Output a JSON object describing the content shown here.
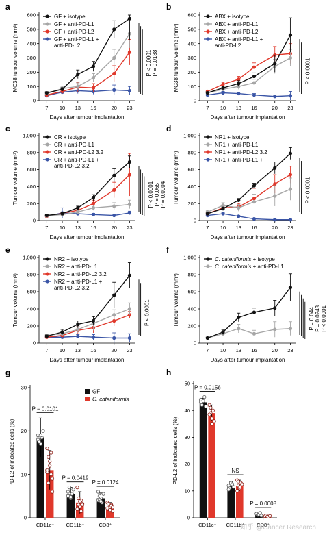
{
  "chart_data": [
    {
      "id": "a",
      "type": "line",
      "panel_label": "a",
      "xlabel": "Days after tumour implantation",
      "ylabel": "MC38 tumour volume (mm³)",
      "x": [
        7,
        10,
        13,
        16,
        20,
        23
      ],
      "xlim": [
        5.5,
        24
      ],
      "ylim": [
        0,
        600
      ],
      "yticks": [
        0,
        100,
        200,
        300,
        400,
        500,
        600
      ],
      "grid": false,
      "legend_position": "top-left",
      "legend_extra": "anti-PD-L2",
      "series": [
        {
          "name": "GF + isotype",
          "color": "#111111",
          "values": [
            55,
            80,
            185,
            240,
            500,
            575
          ],
          "err": [
            8,
            12,
            30,
            35,
            60,
            150
          ]
        },
        {
          "name": "GF + anti-PD-L1",
          "color": "#a6a6a6",
          "values": [
            50,
            85,
            100,
            160,
            300,
            470
          ],
          "err": [
            8,
            15,
            25,
            30,
            60,
            100
          ]
        },
        {
          "name": "GF + anti-PD-L2",
          "color": "#e0382b",
          "values": [
            40,
            65,
            95,
            90,
            190,
            340
          ],
          "err": [
            8,
            15,
            35,
            30,
            55,
            90
          ]
        },
        {
          "name": "GF + anti-PD-L1 +",
          "color": "#3a55a6",
          "values": [
            35,
            60,
            70,
            65,
            75,
            70
          ],
          "err": [
            8,
            12,
            20,
            20,
            35,
            30
          ]
        }
      ],
      "pvalues": [
        "P < 0.0001",
        "P = 0.0188"
      ]
    },
    {
      "id": "b",
      "type": "line",
      "panel_label": "b",
      "xlabel": "Days after tumour implantation",
      "ylabel": "MC38 tumour volume (mm³)",
      "x": [
        7,
        10,
        13,
        16,
        20,
        23
      ],
      "xlim": [
        5.5,
        24
      ],
      "ylim": [
        0,
        600
      ],
      "yticks": [
        0,
        100,
        200,
        300,
        400,
        500,
        600
      ],
      "grid": false,
      "legend_position": "top-left",
      "legend_extra": "anti-PD-L2",
      "series": [
        {
          "name": "ABX + isotype",
          "color": "#111111",
          "values": [
            55,
            90,
            120,
            170,
            260,
            460
          ],
          "err": [
            8,
            12,
            20,
            25,
            60,
            120
          ]
        },
        {
          "name": "ABX + anti-PD-L1",
          "color": "#a6a6a6",
          "values": [
            55,
            80,
            100,
            125,
            240,
            300
          ],
          "err": [
            8,
            12,
            20,
            25,
            50,
            60
          ]
        },
        {
          "name": "ABX + anti-PD-L2",
          "color": "#e0382b",
          "values": [
            65,
            115,
            150,
            235,
            320,
            330
          ],
          "err": [
            8,
            15,
            20,
            30,
            60,
            70
          ]
        },
        {
          "name": "ABX + anti-PD-L1 +",
          "color": "#3a55a6",
          "values": [
            40,
            55,
            50,
            40,
            30,
            35
          ],
          "err": [
            8,
            10,
            10,
            10,
            10,
            30
          ]
        }
      ],
      "pvalues": [
        "P < 0.0001"
      ]
    },
    {
      "id": "c",
      "type": "line",
      "panel_label": "c",
      "xlabel": "Days after tumour implantation",
      "ylabel": "Tumour volume (mm³)",
      "x": [
        7,
        10,
        13,
        16,
        20,
        23
      ],
      "xlim": [
        5.5,
        24
      ],
      "ylim": [
        0,
        1000
      ],
      "yticks": [
        0,
        200,
        400,
        600,
        800,
        1000
      ],
      "ytick_labels": [
        "0",
        "200",
        "400",
        "600",
        "800",
        "1,000"
      ],
      "grid": false,
      "legend_position": "top-left",
      "legend_extra": "anti-PD-L2 3.2",
      "series": [
        {
          "name": "CR + isotype",
          "color": "#111111",
          "values": [
            60,
            80,
            150,
            270,
            530,
            690
          ],
          "err": [
            10,
            15,
            20,
            35,
            80,
            70
          ]
        },
        {
          "name": "CR + anti-PD-L1",
          "color": "#a6a6a6",
          "values": [
            55,
            70,
            100,
            150,
            170,
            190
          ],
          "err": [
            10,
            12,
            20,
            30,
            40,
            50
          ]
        },
        {
          "name": "CR + anti-PD-L2 3.2",
          "color": "#e0382b",
          "values": [
            50,
            85,
            120,
            200,
            360,
            540
          ],
          "err": [
            10,
            15,
            20,
            40,
            90,
            250
          ]
        },
        {
          "name": "CR + anti-PD-L1 +",
          "color": "#3a55a6",
          "values": [
            50,
            90,
            80,
            70,
            60,
            90
          ],
          "err": [
            10,
            60,
            20,
            15,
            15,
            20
          ]
        }
      ],
      "pvalues": [
        "P < 0.0001",
        "P = 0.065",
        "P = 0.0004"
      ]
    },
    {
      "id": "d",
      "type": "line",
      "panel_label": "d",
      "xlabel": "Days after tumour implantation",
      "ylabel": "Tumour volume (mm³)",
      "x": [
        7,
        10,
        13,
        16,
        20,
        23
      ],
      "xlim": [
        5.5,
        24
      ],
      "ylim": [
        0,
        1000
      ],
      "yticks": [
        0,
        200,
        400,
        600,
        800,
        1000
      ],
      "ytick_labels": [
        "0",
        "200",
        "400",
        "600",
        "800",
        "1,000"
      ],
      "grid": false,
      "legend_position": "top-left",
      "series": [
        {
          "name": "NR1 + isotype",
          "color": "#111111",
          "values": [
            80,
            140,
            240,
            410,
            620,
            790
          ],
          "err": [
            10,
            20,
            20,
            30,
            70,
            70
          ]
        },
        {
          "name": "NR1 + anti-PD-L1",
          "color": "#a6a6a6",
          "values": [
            100,
            180,
            150,
            220,
            290,
            370
          ],
          "err": [
            15,
            30,
            40,
            90,
            120,
            130
          ]
        },
        {
          "name": "NR1 + anti-PD-L2 3.2",
          "color": "#e0382b",
          "values": [
            80,
            150,
            160,
            260,
            430,
            540
          ],
          "err": [
            15,
            25,
            40,
            120,
            110,
            100
          ]
        },
        {
          "name": "NR1 + anti-PD-L1 +",
          "color": "#3a55a6",
          "values": [
            60,
            80,
            50,
            20,
            10,
            10
          ],
          "err": [
            10,
            15,
            10,
            5,
            5,
            5
          ]
        }
      ],
      "pvalues": [
        "P < 0.0001"
      ]
    },
    {
      "id": "e",
      "type": "line",
      "panel_label": "e",
      "xlabel": "Days after tumour implantation",
      "ylabel": "Tumour volume (mm³)",
      "x": [
        7,
        10,
        13,
        16,
        20,
        23
      ],
      "xlim": [
        5.5,
        24
      ],
      "ylim": [
        0,
        1000
      ],
      "yticks": [
        0,
        200,
        400,
        600,
        800,
        1000
      ],
      "ytick_labels": [
        "0",
        "200",
        "400",
        "600",
        "800",
        "1,000"
      ],
      "grid": false,
      "legend_position": "top-left",
      "legend_extra": "anti-PD-L2 3.2",
      "series": [
        {
          "name": "NR2 + isotype",
          "color": "#111111",
          "values": [
            80,
            130,
            220,
            260,
            560,
            790
          ],
          "err": [
            15,
            30,
            40,
            50,
            150,
            150
          ]
        },
        {
          "name": "NR2 + anti-PD-L1",
          "color": "#a6a6a6",
          "values": [
            90,
            110,
            160,
            230,
            330,
            400
          ],
          "err": [
            15,
            20,
            40,
            80,
            60,
            70
          ]
        },
        {
          "name": "NR2 + anti-PD-L2 3.2",
          "color": "#e0382b",
          "values": [
            70,
            90,
            150,
            180,
            260,
            330
          ],
          "err": [
            15,
            20,
            40,
            60,
            60,
            40
          ]
        },
        {
          "name": "NR2 + anti-PD-L1 +",
          "color": "#3a55a6",
          "values": [
            70,
            70,
            80,
            70,
            60,
            60
          ],
          "err": [
            15,
            20,
            20,
            30,
            60,
            50
          ]
        }
      ],
      "pvalues": [
        "P < 0.0001"
      ]
    },
    {
      "id": "f",
      "type": "line",
      "panel_label": "f",
      "xlabel": "Days after tumour implantation",
      "ylabel": "Tumour volume (mm³)",
      "x": [
        7,
        10,
        13,
        16,
        20,
        23
      ],
      "xlim": [
        5.5,
        24
      ],
      "ylim": [
        0,
        1000
      ],
      "yticks": [
        0,
        200,
        400,
        600,
        800,
        1000
      ],
      "ytick_labels": [
        "0",
        "200",
        "400",
        "600",
        "800",
        "1,000"
      ],
      "grid": false,
      "legend_position": "top-left",
      "series": [
        {
          "name": "C. cateniformis + isotype",
          "color": "#111111",
          "values": [
            60,
            130,
            300,
            360,
            410,
            650
          ],
          "err": [
            10,
            30,
            50,
            50,
            90,
            160
          ]
        },
        {
          "name": "C. cateniformis + anti-PD-L1",
          "color": "#a6a6a6",
          "values": [
            60,
            110,
            170,
            110,
            160,
            170
          ],
          "err": [
            10,
            30,
            50,
            40,
            90,
            80
          ]
        }
      ],
      "pvalues": [
        "P = 0.044",
        "P = 0.0243",
        "P < 0.0001"
      ]
    },
    {
      "id": "g",
      "type": "bar",
      "panel_label": "g",
      "ylabel": "PD-L2 of indicated cells (%)",
      "categories": [
        "CD11c⁺",
        "CD11b⁺",
        "CD8⁺"
      ],
      "ylim": [
        0,
        30
      ],
      "yticks": [
        0,
        10,
        20,
        30
      ],
      "grid": false,
      "legend_position": "top-right",
      "series": [
        {
          "name": "GF",
          "color": "#111111",
          "values": [
            18.5,
            5.5,
            4.5
          ],
          "err": [
            4.5,
            1.5,
            1.2
          ],
          "points": [
            [
              19,
              18,
              17,
              18.5,
              20,
              18,
              17.5,
              19
            ],
            [
              6,
              5,
              4.5,
              5.5,
              6.5,
              5,
              7,
              4.8
            ],
            [
              4,
              5,
              4.5,
              3.5,
              5.5,
              6,
              4.2,
              3.8
            ]
          ]
        },
        {
          "name": "C. cateniformis",
          "color": "#e0382b",
          "values": [
            11,
            3.5,
            2.5
          ],
          "err": [
            4.5,
            2.5,
            1.0
          ],
          "points": [
            [
              16,
              14,
              12,
              10,
              9,
              11,
              8,
              13,
              15,
              6,
              10.5
            ],
            [
              7,
              3,
              2.5,
              4,
              3.2,
              2,
              4.5,
              3.8,
              1.5,
              3
            ],
            [
              3.5,
              2,
              2.5,
              3,
              1.5,
              2.2,
              3.2,
              1.8,
              2.8,
              2.4
            ]
          ]
        }
      ],
      "comparisons": [
        {
          "text": "P = 0.0101",
          "category": 0
        },
        {
          "text": "P = 0.0419",
          "category": 1
        },
        {
          "text": "P = 0.0124",
          "category": 2
        }
      ]
    },
    {
      "id": "h",
      "type": "bar",
      "panel_label": "h",
      "ylabel": "PD-L2 of indicated cells (%)",
      "categories": [
        "CD11c⁺",
        "CD11b⁺",
        "CD8⁺"
      ],
      "ylim": [
        0,
        50
      ],
      "yticks": [
        0,
        10,
        20,
        30,
        40,
        50
      ],
      "grid": false,
      "series": [
        {
          "name": "GF",
          "color": "#111111",
          "values": [
            43,
            12,
            1.2
          ],
          "err": [
            1.5,
            1.5,
            0.5
          ],
          "points": [
            [
              44,
              42,
              43.5,
              45,
              41.5,
              43
            ],
            [
              12,
              11,
              13,
              12.5,
              11.5,
              10.5
            ],
            [
              1.5,
              1.0,
              1.2,
              1.8,
              0.8
            ]
          ]
        },
        {
          "name": "C. cateniformis",
          "color": "#e0382b",
          "values": [
            39,
            12,
            0.6
          ],
          "err": [
            3,
            2,
            0.3
          ],
          "points": [
            [
              42,
              39,
              37,
              40,
              36,
              38.5,
              41,
              35
            ],
            [
              14,
              12,
              11,
              13,
              12.5,
              10,
              13.5,
              11.5
            ],
            [
              0.6,
              0.8,
              0.5,
              0.4,
              0.7
            ]
          ]
        }
      ],
      "comparisons": [
        {
          "text": "P = 0.0156",
          "category": 0
        },
        {
          "text": "NS",
          "category": 1
        },
        {
          "text": "P = 0.0008",
          "category": 2
        }
      ]
    }
  ],
  "watermark": "知乎 @Cancer Research"
}
